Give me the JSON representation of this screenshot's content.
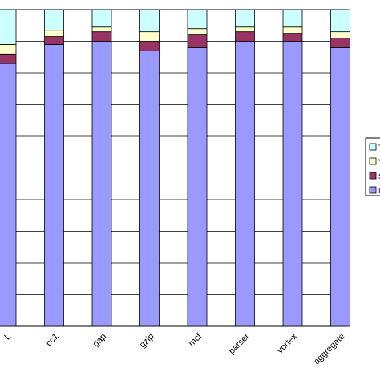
{
  "chart_data": {
    "type": "bar",
    "stacked": true,
    "normalized": true,
    "categories": [
      "",
      "cc1",
      "gap",
      "gzip",
      "mcf",
      "parser",
      "vortex",
      "aggregate"
    ],
    "category_fragments": [
      "L",
      "",
      "",
      "",
      "",
      "",
      "",
      ""
    ],
    "ylim": [
      0,
      100
    ],
    "grid": true,
    "legend_placement": "right",
    "series": [
      {
        "legend_fragment": "I",
        "color": "#9999ff",
        "values": [
          83,
          89,
          90,
          87,
          88,
          90,
          90,
          88
        ]
      },
      {
        "legend_fragment": "S",
        "color": "#993366",
        "values": [
          3,
          2.5,
          3,
          3,
          4,
          3,
          2.5,
          3
        ]
      },
      {
        "legend_fragment": "Y",
        "color": "#ffffcc",
        "values": [
          3,
          2,
          1.5,
          3,
          2,
          1.5,
          2,
          2
        ]
      },
      {
        "legend_fragment": "T",
        "color": "#ccffff",
        "values": [
          11,
          6.5,
          5.5,
          7,
          6,
          5.5,
          5.5,
          7
        ]
      }
    ]
  }
}
